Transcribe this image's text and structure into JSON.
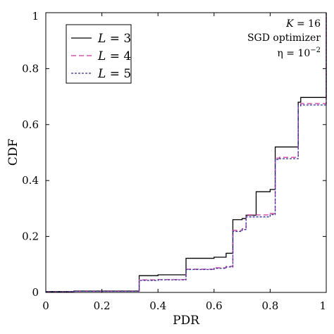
{
  "chart_data": {
    "type": "line",
    "step": true,
    "xlabel": "PDR",
    "ylabel": "CDF",
    "xlim": [
      0,
      1
    ],
    "ylim": [
      0,
      1
    ],
    "x_ticks": [
      "0",
      "0.2",
      "0.4",
      "0.6",
      "0.8",
      "1"
    ],
    "y_ticks": [
      "0",
      "0.2",
      "0.4",
      "0.6",
      "0.8",
      "1"
    ],
    "grid": false,
    "legend_position": "top-left",
    "annotations": {
      "k_var": "K",
      "k_value": " = 16",
      "optimizer": "SGD optimizer",
      "eta_prefix": "η = 10",
      "eta_exp": "−2"
    },
    "series": [
      {
        "name": "L = 3",
        "var": "L",
        "val": " = 3",
        "color": "#000000",
        "dash": "",
        "x": [
          0,
          0.1,
          0.333,
          0.4,
          0.5,
          0.6,
          0.643,
          0.667,
          0.7,
          0.714,
          0.75,
          0.8,
          0.818,
          0.833,
          0.9,
          0.909,
          0.9995,
          1
        ],
        "y": [
          0.003,
          0.005,
          0.06,
          0.063,
          0.122,
          0.126,
          0.14,
          0.26,
          0.264,
          0.276,
          0.36,
          0.368,
          0.52,
          0.52,
          0.68,
          0.697,
          0.697,
          1.0
        ]
      },
      {
        "name": "L = 4",
        "var": "L",
        "val": " = 4",
        "color": "#cc3399",
        "dash": "7,4",
        "x": [
          0,
          0.1,
          0.333,
          0.4,
          0.5,
          0.6,
          0.643,
          0.667,
          0.7,
          0.714,
          0.75,
          0.8,
          0.818,
          0.833,
          0.9,
          0.909,
          0.9995,
          1
        ],
        "y": [
          0.002,
          0.004,
          0.045,
          0.046,
          0.083,
          0.088,
          0.093,
          0.222,
          0.228,
          0.277,
          0.277,
          0.282,
          0.48,
          0.483,
          0.672,
          0.675,
          0.675,
          1.0
        ]
      },
      {
        "name": "L = 5",
        "var": "L",
        "val": " = 5",
        "color": "#333399",
        "dash": "3,2",
        "x": [
          0,
          0.1,
          0.333,
          0.4,
          0.5,
          0.6,
          0.643,
          0.667,
          0.7,
          0.714,
          0.75,
          0.8,
          0.818,
          0.833,
          0.9,
          0.909,
          0.9995,
          1
        ],
        "y": [
          0.002,
          0.004,
          0.043,
          0.045,
          0.082,
          0.086,
          0.091,
          0.218,
          0.225,
          0.27,
          0.27,
          0.278,
          0.475,
          0.478,
          0.667,
          0.67,
          0.67,
          1.0
        ]
      }
    ]
  }
}
